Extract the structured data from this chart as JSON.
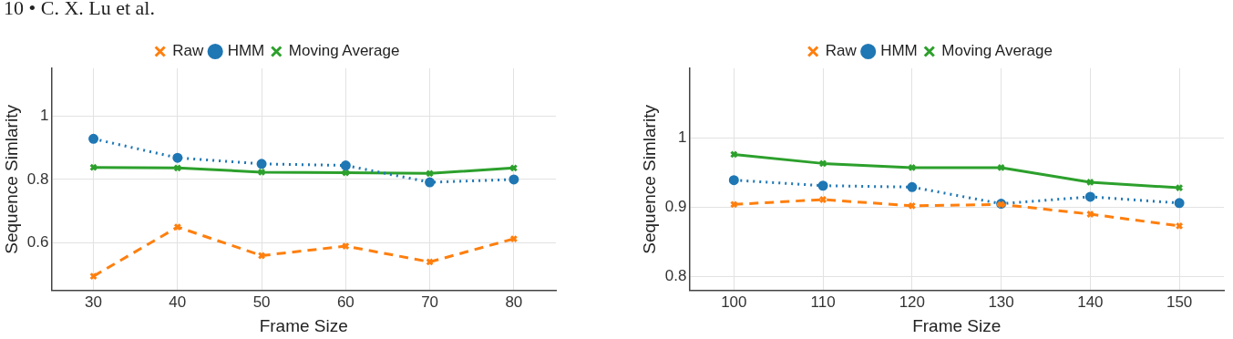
{
  "chart_data": [
    {
      "type": "line",
      "annotations": [
        "10 • C. X. Lu et al."
      ],
      "xlabel": "Frame Size",
      "ylabel": "Sequence Simlarity",
      "x": [
        30,
        40,
        50,
        60,
        70,
        80
      ],
      "xlim": [
        25,
        85
      ],
      "xticks": [
        30,
        40,
        50,
        60,
        70,
        80
      ],
      "ylim": [
        0.45,
        1.15
      ],
      "yticks": [
        0.6,
        0.8,
        1
      ],
      "grid": true,
      "legend": "top",
      "series": [
        {
          "name": "Raw",
          "color": "#ff7f0e",
          "marker": "cross",
          "line_style": "dashed",
          "values": [
            0.495,
            0.65,
            0.56,
            0.59,
            0.54,
            0.613
          ]
        },
        {
          "name": "HMM",
          "color": "#1f77b4",
          "marker": "circle",
          "line_style": "dotted",
          "values": [
            0.928,
            0.868,
            0.849,
            0.844,
            0.791,
            0.8
          ]
        },
        {
          "name": "Moving Average",
          "color": "#2ca02c",
          "marker": "cross",
          "line_style": "solid",
          "values": [
            0.838,
            0.836,
            0.823,
            0.821,
            0.819,
            0.836
          ]
        }
      ]
    },
    {
      "type": "line",
      "xlabel": "Frame Size",
      "ylabel": "Sequence Simlarity",
      "x": [
        100,
        110,
        120,
        130,
        140,
        150
      ],
      "xlim": [
        95,
        155
      ],
      "xticks": [
        100,
        110,
        120,
        130,
        140,
        150
      ],
      "ylim": [
        0.78,
        1.1
      ],
      "yticks": [
        0.8,
        0.9,
        1
      ],
      "grid": true,
      "legend": "top",
      "series": [
        {
          "name": "Raw",
          "color": "#ff7f0e",
          "marker": "cross",
          "line_style": "dashed",
          "values": [
            0.904,
            0.911,
            0.902,
            0.904,
            0.89,
            0.873
          ]
        },
        {
          "name": "HMM",
          "color": "#1f77b4",
          "marker": "circle",
          "line_style": "dotted",
          "values": [
            0.939,
            0.931,
            0.929,
            0.905,
            0.915,
            0.906
          ]
        },
        {
          "name": "Moving Average",
          "color": "#2ca02c",
          "marker": "cross",
          "line_style": "solid",
          "values": [
            0.976,
            0.963,
            0.957,
            0.957,
            0.936,
            0.928
          ]
        }
      ]
    }
  ]
}
